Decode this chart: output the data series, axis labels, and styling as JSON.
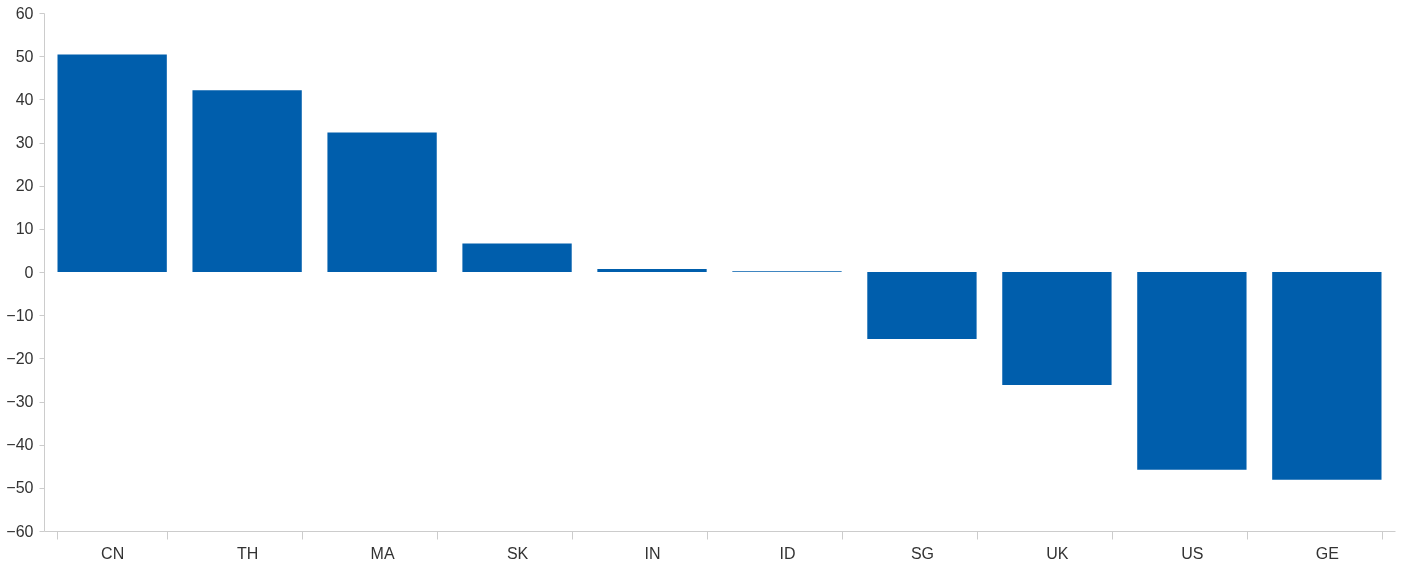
{
  "chart_data": {
    "type": "bar",
    "categories": [
      "CN",
      "TH",
      "MA",
      "SK",
      "IN",
      "ID",
      "SG",
      "UK",
      "US",
      "GE"
    ],
    "values": [
      50.4,
      42.1,
      32.3,
      6.6,
      0.7,
      0.2,
      -15.5,
      -26.2,
      -45.8,
      -48.1
    ],
    "color": "#005eac",
    "ylim": [
      -60,
      60
    ],
    "yticks": [
      -60,
      -50,
      -40,
      -30,
      -20,
      -10,
      0,
      10,
      20,
      30,
      40,
      50,
      60
    ],
    "grid": false
  }
}
